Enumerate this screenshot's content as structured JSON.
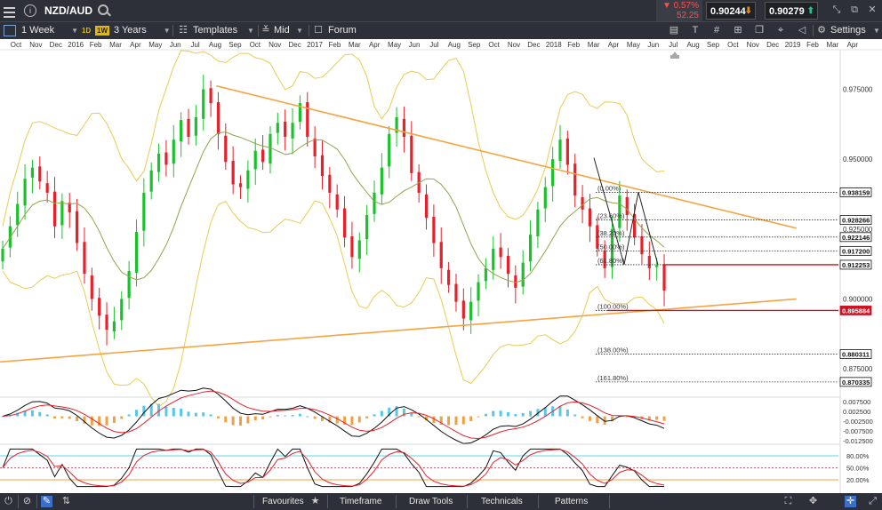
{
  "header": {
    "symbol": "NZD/AUD",
    "info_icon": "info-icon",
    "change_percent": "0.57%",
    "change_points": "52.25",
    "bid": "0.90244",
    "ask": "0.90279"
  },
  "toolbar": {
    "interval": "1 Week",
    "res_1d": "1D",
    "res_1w": "1W",
    "range": "3 Years",
    "templates": "Templates",
    "price_type": "Mid",
    "forum": "Forum",
    "settings": "Settings",
    "text_tool": "T"
  },
  "bottom": {
    "favourites": "Favourites",
    "timeframe": "Timeframe",
    "draw_tools": "Draw Tools",
    "technicals": "Technicals",
    "patterns": "Patterns"
  },
  "colors": {
    "bull": "#19c22b",
    "bear": "#e8202a",
    "trendline": "#f5a442",
    "bollinger": "#e9cb52",
    "ma": "#8da84a",
    "macd_pos": "#54c8e8",
    "macd_neg": "#f0a040",
    "stoch_upper": "#5ed6e8",
    "stoch_lower": "#f0a040",
    "price_red": "#cc1122"
  },
  "chart_data": {
    "type": "candlestick",
    "x_tick_labels": [
      "Oct",
      "Nov",
      "Dec",
      "2016",
      "Feb",
      "Mar",
      "Apr",
      "May",
      "Jun",
      "Jul",
      "Aug",
      "Sep",
      "Oct",
      "Nov",
      "Dec",
      "2017",
      "Feb",
      "Mar",
      "Apr",
      "May",
      "Jun",
      "Jul",
      "Aug",
      "Sep",
      "Oct",
      "Nov",
      "Dec",
      "2018",
      "Feb",
      "Mar",
      "Apr",
      "May",
      "Jun",
      "Jul",
      "Aug",
      "Sep",
      "Oct",
      "Nov",
      "Dec",
      "2019",
      "Feb",
      "Mar",
      "Apr"
    ],
    "price_axis": {
      "ticks": [
        "0.975000",
        "0.950000",
        "0.925000",
        "0.900000",
        "0.875000"
      ],
      "tick_values": [
        0.975,
        0.95,
        0.925,
        0.9,
        0.875
      ],
      "ylim": [
        0.8652,
        0.9885
      ]
    },
    "price_tags": [
      {
        "label": "0.938159",
        "value": 0.938159,
        "style": "white"
      },
      {
        "label": "0.928266",
        "value": 0.928266,
        "style": "white"
      },
      {
        "label": "0.922146",
        "value": 0.922146,
        "style": "white"
      },
      {
        "label": "0.917200",
        "value": 0.9172,
        "style": "white"
      },
      {
        "label": "0.912253",
        "value": 0.912253,
        "style": "white"
      },
      {
        "label": "0.895884",
        "value": 0.895884,
        "style": "red"
      },
      {
        "label": "0.880311",
        "value": 0.880311,
        "style": "white"
      },
      {
        "label": "0.870335",
        "value": 0.870335,
        "style": "white"
      }
    ],
    "fibonacci": [
      {
        "label": "(0.00%)",
        "value": 0.938159
      },
      {
        "label": "(23.60%)",
        "value": 0.928266
      },
      {
        "label": "(38.20%)",
        "value": 0.922146
      },
      {
        "label": "(50.00%)",
        "value": 0.9172
      },
      {
        "label": "(61.80%)",
        "value": 0.912253
      },
      {
        "label": "(100.00%)",
        "value": 0.89588
      },
      {
        "label": "(138.00%)",
        "value": 0.880311
      },
      {
        "label": "(161.80%)",
        "value": 0.870335
      }
    ],
    "trendlines": [
      {
        "from": [
          0.258,
          0.9762
        ],
        "to": [
          0.95,
          0.9253
        ]
      },
      {
        "from": [
          0.0,
          0.8775
        ],
        "to": [
          0.95,
          0.9
        ]
      }
    ],
    "price_series": [
      0.918,
      0.926,
      0.934,
      0.943,
      0.947,
      0.942,
      0.938,
      0.926,
      0.935,
      0.931,
      0.92,
      0.909,
      0.9,
      0.894,
      0.889,
      0.892,
      0.9,
      0.91,
      0.924,
      0.938,
      0.946,
      0.952,
      0.948,
      0.957,
      0.964,
      0.958,
      0.965,
      0.975,
      0.97,
      0.959,
      0.949,
      0.941,
      0.94,
      0.946,
      0.953,
      0.949,
      0.959,
      0.963,
      0.958,
      0.963,
      0.97,
      0.958,
      0.951,
      0.944,
      0.938,
      0.932,
      0.922,
      0.915,
      0.921,
      0.93,
      0.938,
      0.947,
      0.959,
      0.965,
      0.958,
      0.945,
      0.938,
      0.929,
      0.92,
      0.911,
      0.905,
      0.899,
      0.893,
      0.899,
      0.906,
      0.911,
      0.918,
      0.915,
      0.909,
      0.904,
      0.913,
      0.923,
      0.932,
      0.94,
      0.95,
      0.957,
      0.948,
      0.937,
      0.932,
      0.926,
      0.918,
      0.911,
      0.925,
      0.937,
      0.93,
      0.922,
      0.916,
      0.911,
      0.912,
      0.903
    ],
    "macd": {
      "axis_ticks": [
        "0.007500",
        "0.002500",
        "-0.002500",
        "-0.007500",
        "-0.012500"
      ],
      "tick_values": [
        0.0075,
        0.0025,
        -0.0025,
        -0.0075,
        -0.0125
      ],
      "ylim": [
        -0.0135,
        0.0085
      ]
    },
    "stochastic": {
      "axis_ticks": [
        "80.00%",
        "50.00%",
        "20.00%"
      ],
      "tick_values": [
        80,
        50,
        20
      ],
      "ylim": [
        0,
        100
      ],
      "upper_band": 80,
      "lower_band": 20
    }
  }
}
